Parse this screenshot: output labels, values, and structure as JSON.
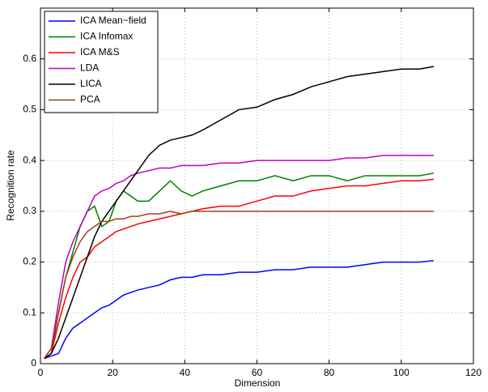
{
  "chart_data": {
    "type": "line",
    "xlabel": "Dimension",
    "ylabel": "Recognition rate",
    "x": [
      1,
      3,
      5,
      7,
      9,
      11,
      13,
      15,
      17,
      19,
      21,
      23,
      25,
      27,
      30,
      33,
      36,
      39,
      42,
      45,
      50,
      55,
      60,
      65,
      70,
      75,
      80,
      85,
      90,
      95,
      100,
      105,
      109
    ],
    "series": [
      {
        "name": "ICA Mean−field",
        "color": "#0000ff",
        "values": [
          0.01,
          0.015,
          0.02,
          0.05,
          0.07,
          0.08,
          0.09,
          0.1,
          0.11,
          0.115,
          0.125,
          0.135,
          0.14,
          0.145,
          0.15,
          0.155,
          0.165,
          0.17,
          0.17,
          0.175,
          0.175,
          0.18,
          0.18,
          0.185,
          0.185,
          0.19,
          0.19,
          0.19,
          0.195,
          0.2,
          0.2,
          0.2,
          0.203
        ]
      },
      {
        "name": "ICA Infomax",
        "color": "#008000",
        "values": [
          0.01,
          0.02,
          0.1,
          0.17,
          0.22,
          0.27,
          0.3,
          0.31,
          0.27,
          0.28,
          0.32,
          0.34,
          0.33,
          0.32,
          0.32,
          0.34,
          0.36,
          0.34,
          0.33,
          0.34,
          0.35,
          0.36,
          0.36,
          0.37,
          0.36,
          0.37,
          0.37,
          0.36,
          0.37,
          0.37,
          0.37,
          0.37,
          0.375
        ]
      },
      {
        "name": "ICA M&S",
        "color": "#ff0000",
        "values": [
          0.01,
          0.02,
          0.08,
          0.13,
          0.17,
          0.2,
          0.21,
          0.23,
          0.24,
          0.25,
          0.26,
          0.265,
          0.27,
          0.275,
          0.28,
          0.285,
          0.29,
          0.295,
          0.3,
          0.305,
          0.31,
          0.31,
          0.32,
          0.33,
          0.33,
          0.34,
          0.345,
          0.35,
          0.35,
          0.355,
          0.36,
          0.36,
          0.363
        ]
      },
      {
        "name": "LDA",
        "color": "#bf00bf",
        "values": [
          0.01,
          0.03,
          0.12,
          0.2,
          0.24,
          0.27,
          0.3,
          0.33,
          0.34,
          0.345,
          0.355,
          0.36,
          0.37,
          0.375,
          0.38,
          0.385,
          0.385,
          0.39,
          0.39,
          0.39,
          0.395,
          0.395,
          0.4,
          0.4,
          0.4,
          0.4,
          0.4,
          0.405,
          0.405,
          0.41,
          0.41,
          0.41,
          0.41
        ]
      },
      {
        "name": "LICA",
        "color": "#000000",
        "values": [
          0.01,
          0.02,
          0.05,
          0.09,
          0.13,
          0.17,
          0.21,
          0.25,
          0.28,
          0.3,
          0.32,
          0.34,
          0.36,
          0.38,
          0.41,
          0.43,
          0.44,
          0.445,
          0.45,
          0.46,
          0.48,
          0.5,
          0.505,
          0.52,
          0.53,
          0.545,
          0.555,
          0.565,
          0.57,
          0.575,
          0.58,
          0.58,
          0.585
        ]
      },
      {
        "name": "PCA",
        "color": "#a0401a",
        "values": [
          0.01,
          0.03,
          0.1,
          0.17,
          0.21,
          0.24,
          0.26,
          0.27,
          0.28,
          0.28,
          0.285,
          0.285,
          0.29,
          0.29,
          0.295,
          0.295,
          0.3,
          0.295,
          0.3,
          0.3,
          0.3,
          0.3,
          0.3,
          0.3,
          0.3,
          0.3,
          0.3,
          0.3,
          0.3,
          0.3,
          0.3,
          0.3,
          0.3
        ]
      }
    ],
    "xlim": [
      0,
      120
    ],
    "xticks": [
      0,
      20,
      40,
      60,
      80,
      100,
      120
    ],
    "ylim": [
      0,
      0.7
    ],
    "yticks": [
      0,
      0.1,
      0.2,
      0.3,
      0.4,
      0.5,
      0.6
    ],
    "grid": true,
    "legend": "upper-left"
  }
}
